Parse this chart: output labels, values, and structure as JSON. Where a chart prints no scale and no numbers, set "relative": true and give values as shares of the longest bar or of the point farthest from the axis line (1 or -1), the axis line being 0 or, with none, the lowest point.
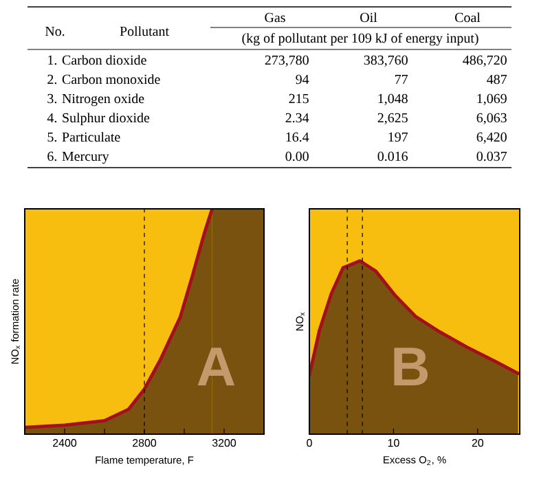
{
  "chart_data": [
    {
      "type": "other",
      "categories": [
        "No.",
        "Pollutant",
        "Gas",
        "Oil",
        "Coal"
      ],
      "subtitle": "(kg of pollutant per 109 kJ of energy input)",
      "cell_labels": [
        [
          "1. Carbon dioxide",
          "273,780",
          "383,760",
          "486,720"
        ],
        [
          "2. Carbon monoxide",
          "94",
          "77",
          "487"
        ],
        [
          "3. Nitrogen oxide",
          "215",
          "1,048",
          "1,069"
        ],
        [
          "4. Sulphur dioxide",
          "2.34",
          "2,625",
          "6,063"
        ],
        [
          "5. Particulate",
          "16.4",
          "197",
          "6,420"
        ],
        [
          "6. Mercury",
          "0.00",
          "0.016",
          "0.037"
        ]
      ]
    },
    {
      "type": "area",
      "relative": true,
      "color": "#7a5210",
      "xlabel": "Flame temperature, F",
      "ylabel": "NO$_{x}$ formation rate",
      "xlim": [
        2200,
        3400
      ],
      "xticks": [
        2400,
        {
          "value": 2600,
          "label": null
        },
        2800,
        {
          "value": 3000,
          "label": null
        },
        3200
      ],
      "tick_labels": "x",
      "x": [
        2200,
        2400,
        2600,
        2720,
        2800,
        2880,
        2980,
        3040,
        3100,
        3140
      ],
      "values": [
        0.03,
        0.04,
        0.06,
        0.11,
        0.2,
        0.33,
        0.52,
        0.7,
        0.89,
        1
      ],
      "ref_lines": [
        {
          "axis": "x",
          "value": 2800,
          "line_style": "dashed"
        }
      ],
      "bands": [
        {
          "axis": "x",
          "from": 3140,
          "to": 3400,
          "color": "#7a5210"
        }
      ],
      "annotations": [
        "A"
      ]
    },
    {
      "type": "area",
      "relative": true,
      "color": "#7a5210",
      "xlabel": "Excess O$_{2}$, %",
      "ylabel": "NO$_{x}$",
      "xlim": [
        0,
        25
      ],
      "xticks": [
        0,
        10,
        20
      ],
      "tick_labels": "x",
      "x": [
        0,
        1.2,
        2.6,
        4,
        6,
        7.9,
        10.2,
        12.6,
        15.5,
        18.8,
        22.1,
        24.8
      ],
      "values": [
        0.34,
        0.6,
        0.81,
        0.96,
        1,
        0.94,
        0.8,
        0.68,
        0.59,
        0.5,
        0.42,
        0.35
      ],
      "ref_lines": [
        {
          "axis": "x",
          "value": 4.5,
          "line_style": "dashed"
        },
        {
          "axis": "x",
          "value": 6.3,
          "line_style": "dashed"
        }
      ],
      "annotations": [
        "B"
      ]
    }
  ]
}
